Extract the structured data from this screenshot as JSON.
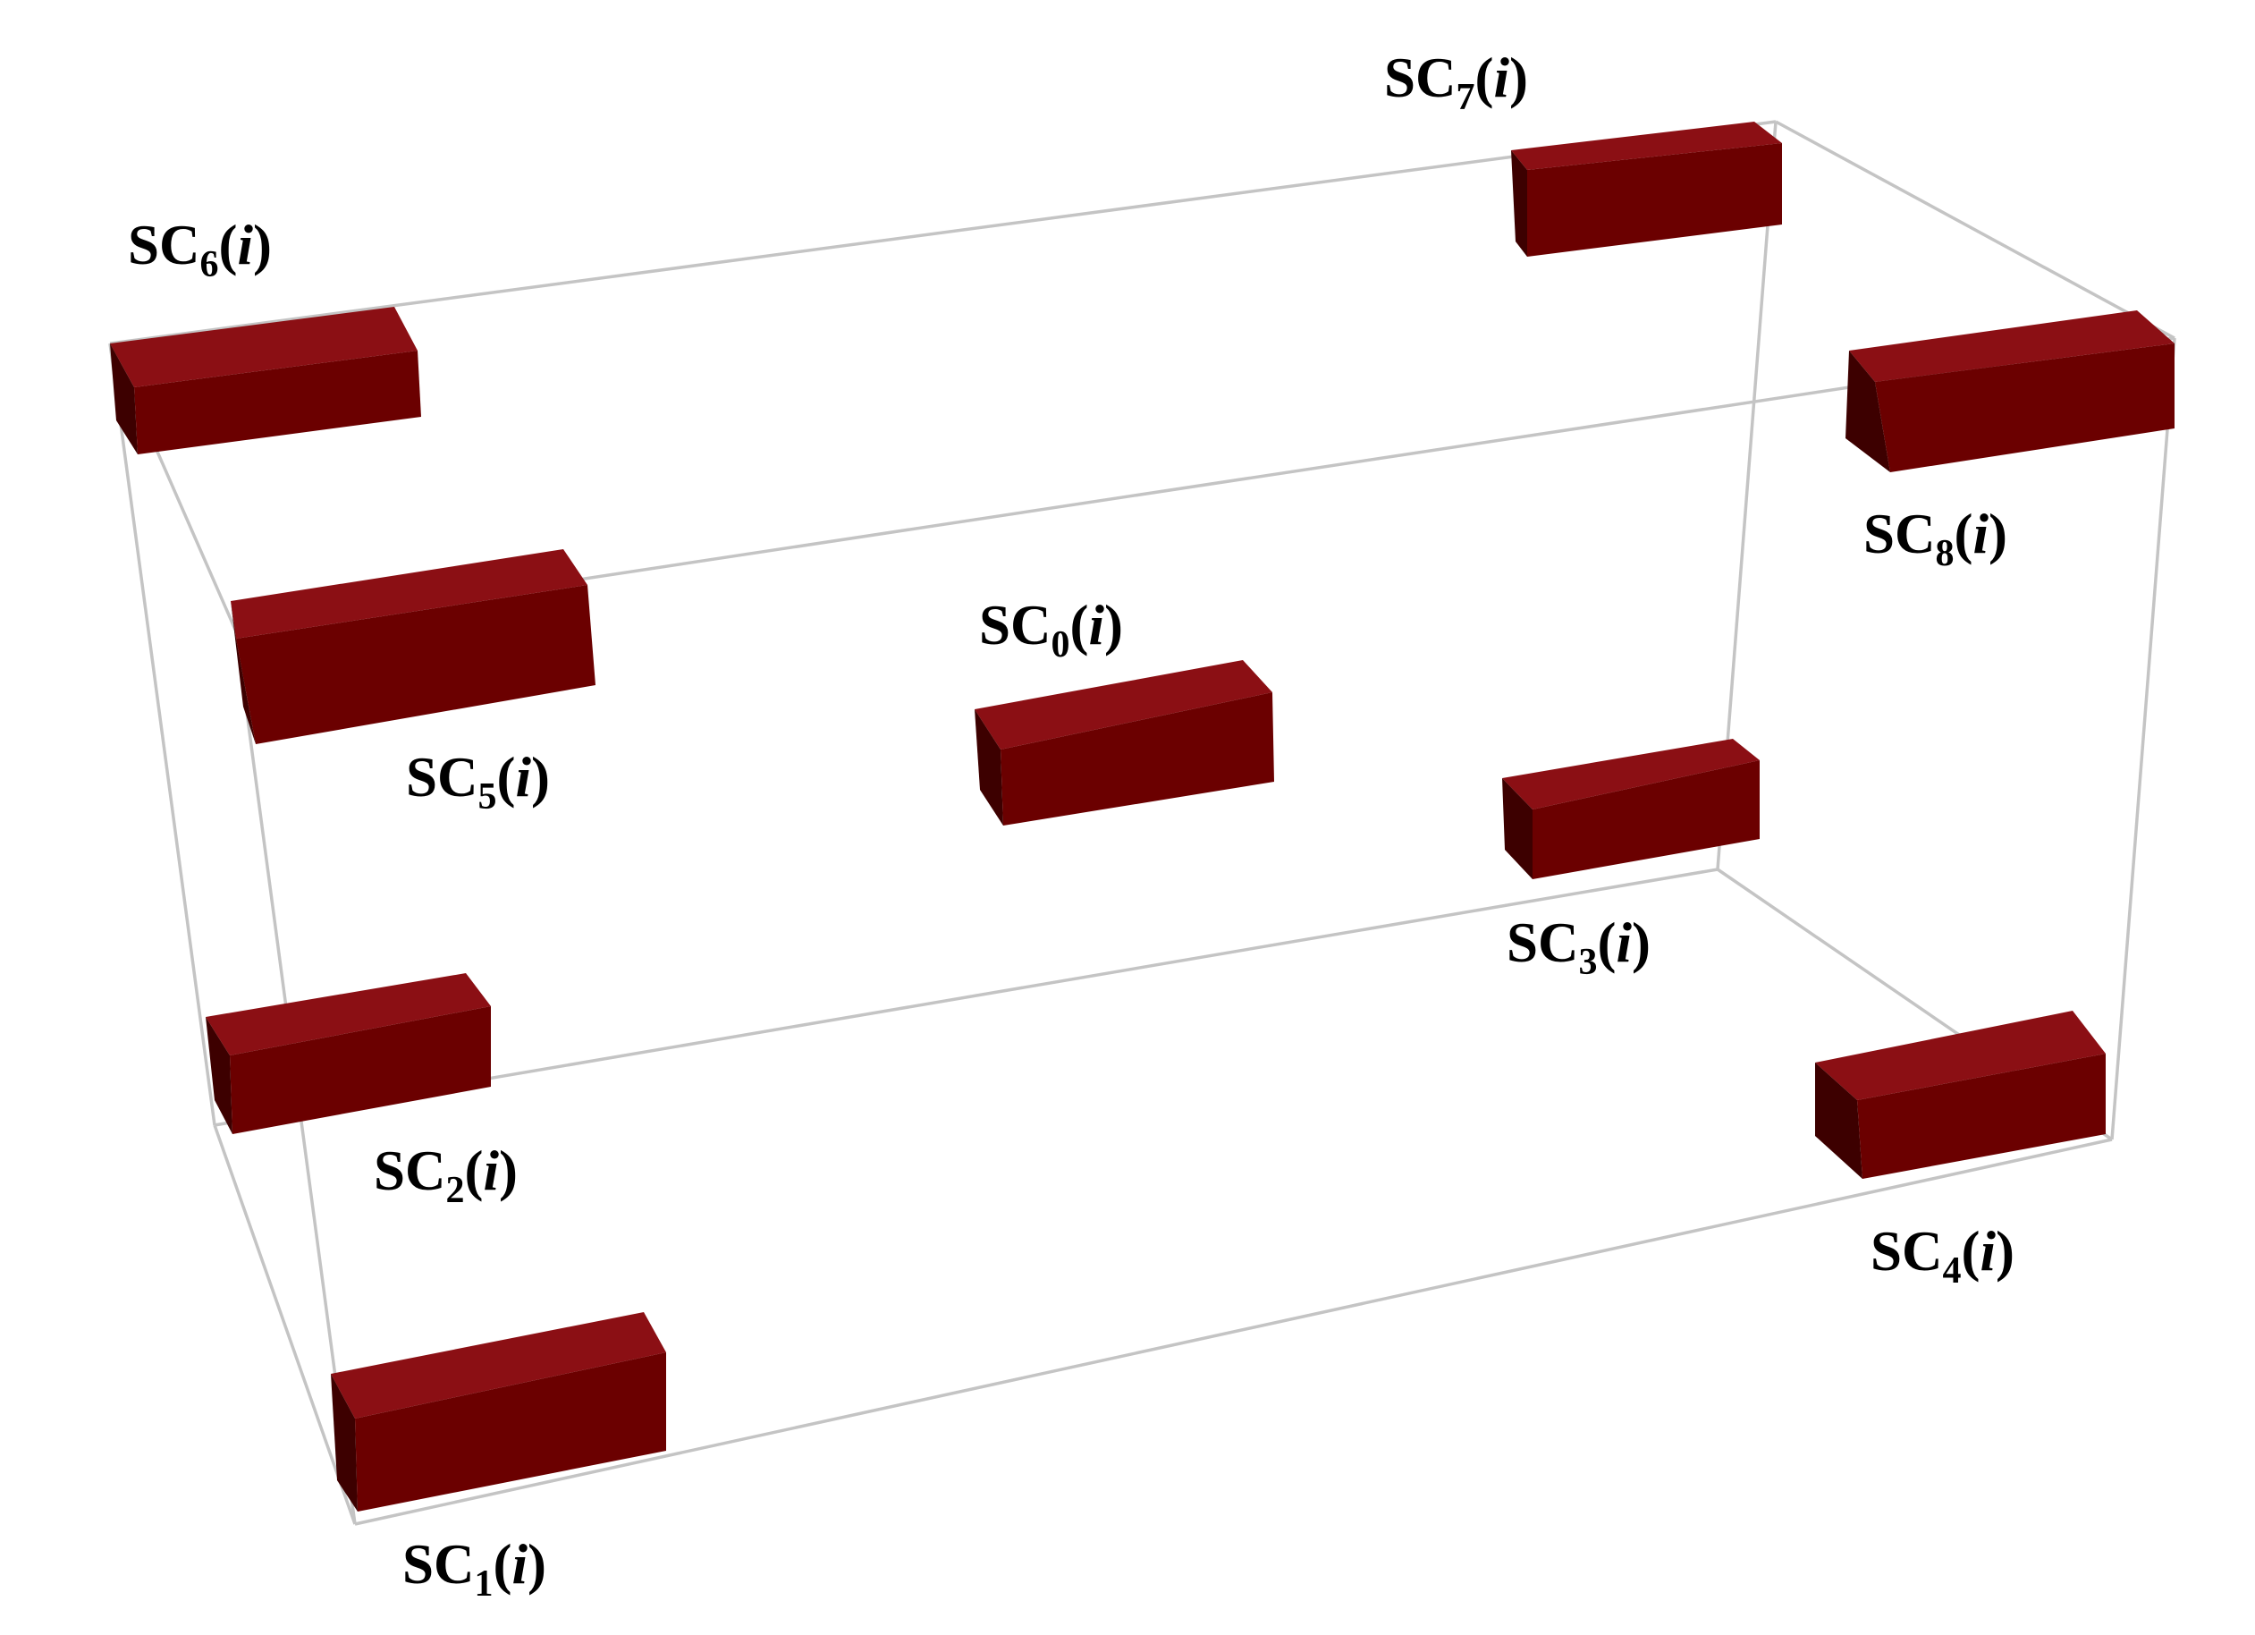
{
  "colors": {
    "box_top": "#8b0f14",
    "box_front": "#6b0000",
    "box_side": "#3d0000",
    "edge": "#c4c4c4",
    "background": "#ffffff",
    "label": "#000000"
  },
  "frame_edges": [
    {
      "from": "c6",
      "to": "c7"
    },
    {
      "from": "c7",
      "to": "c8"
    },
    {
      "from": "c8",
      "to": "c5"
    },
    {
      "from": "c5",
      "to": "c6"
    },
    {
      "from": "c2",
      "to": "c3"
    },
    {
      "from": "c3",
      "to": "c4"
    },
    {
      "from": "c4",
      "to": "c1"
    },
    {
      "from": "c1",
      "to": "c2"
    },
    {
      "from": "c6",
      "to": "c2"
    },
    {
      "from": "c5",
      "to": "c1"
    },
    {
      "from": "c7",
      "to": "c3"
    },
    {
      "from": "c8",
      "to": "c4"
    }
  ],
  "subcells": [
    {
      "id": "sc0",
      "prefix": "SC",
      "index": "0",
      "arg": "i"
    },
    {
      "id": "sc1",
      "prefix": "SC",
      "index": "1",
      "arg": "i"
    },
    {
      "id": "sc2",
      "prefix": "SC",
      "index": "2",
      "arg": "i"
    },
    {
      "id": "sc3",
      "prefix": "SC",
      "index": "3",
      "arg": "i"
    },
    {
      "id": "sc4",
      "prefix": "SC",
      "index": "4",
      "arg": "i"
    },
    {
      "id": "sc5",
      "prefix": "SC",
      "index": "5",
      "arg": "i"
    },
    {
      "id": "sc6",
      "prefix": "SC",
      "index": "6",
      "arg": "i"
    },
    {
      "id": "sc7",
      "prefix": "SC",
      "index": "7",
      "arg": "i"
    },
    {
      "id": "sc8",
      "prefix": "SC",
      "index": "8",
      "arg": "i"
    }
  ]
}
